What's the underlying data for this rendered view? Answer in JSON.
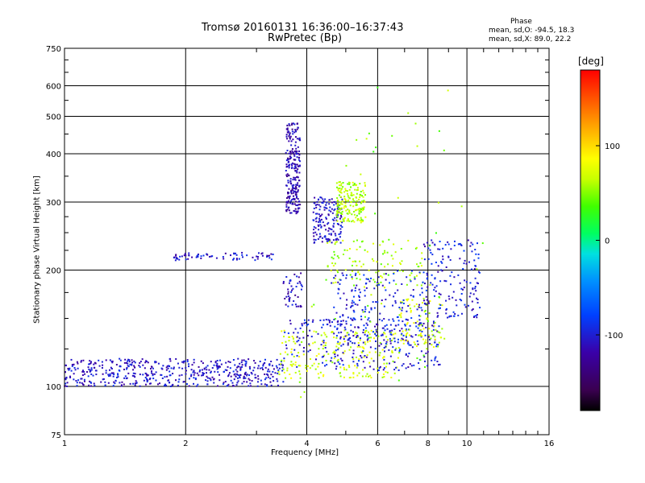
{
  "chart_data": {
    "type": "scatter",
    "title": "Tromsø 20160131 16:36:00–16:37:43",
    "subtitle": "RwPretec (Bp)",
    "xlabel": "Frequency [MHz]",
    "ylabel": "Stationary phase Virtual Height [km]",
    "x_scale": "log",
    "y_scale": "log",
    "xlim": [
      1,
      16
    ],
    "ylim": [
      75,
      750
    ],
    "x_ticks": [
      1,
      2,
      4,
      6,
      8,
      10,
      16
    ],
    "y_ticks": [
      75,
      100,
      200,
      300,
      400,
      500,
      600,
      750
    ],
    "grid": true,
    "colorbar": {
      "label": "[deg]",
      "range": [
        -180,
        180
      ],
      "ticks": [
        100,
        0,
        -100
      ]
    },
    "stats": {
      "heading": "Phase",
      "o_mode": "mean, sd,O:  -94.5, 18.3",
      "x_mode": "mean, sd,X:  89.0, 22.2"
    },
    "point_groups": [
      {
        "x": [
          1.0,
          3.5
        ],
        "y": [
          100,
          118
        ],
        "phase": -105,
        "count": 520
      },
      {
        "x": [
          3.4,
          6.8
        ],
        "y": [
          105,
          140
        ],
        "phase": 70,
        "count": 220
      },
      {
        "x": [
          3.5,
          8.6
        ],
        "y": [
          110,
          150
        ],
        "phase": -100,
        "count": 260
      },
      {
        "x": [
          6.8,
          8.8
        ],
        "y": [
          125,
          170
        ],
        "phase": 70,
        "count": 90
      },
      {
        "x": [
          3.55,
          3.85
        ],
        "y": [
          280,
          480
        ],
        "phase": -115,
        "count": 240
      },
      {
        "x": [
          3.5,
          3.9
        ],
        "y": [
          160,
          200
        ],
        "phase": -110,
        "count": 45
      },
      {
        "x": [
          4.15,
          4.9
        ],
        "y": [
          235,
          310
        ],
        "phase": -105,
        "count": 160
      },
      {
        "x": [
          4.75,
          5.6
        ],
        "y": [
          265,
          340
        ],
        "phase": 60,
        "count": 180
      },
      {
        "x": [
          1.85,
          3.3
        ],
        "y": [
          212,
          222
        ],
        "phase": -105,
        "count": 70
      },
      {
        "x": [
          4.5,
          7.8
        ],
        "y": [
          180,
          240
        ],
        "phase": 60,
        "count": 120
      },
      {
        "x": [
          7.8,
          10.8
        ],
        "y": [
          150,
          240
        ],
        "phase": -100,
        "count": 160
      },
      {
        "x": [
          4.6,
          8.0
        ],
        "y": [
          130,
          200
        ],
        "phase": -95,
        "count": 200
      },
      {
        "x": [
          3.8,
          11.0
        ],
        "y": [
          90,
          620
        ],
        "phase": 50,
        "count": 50
      }
    ]
  }
}
